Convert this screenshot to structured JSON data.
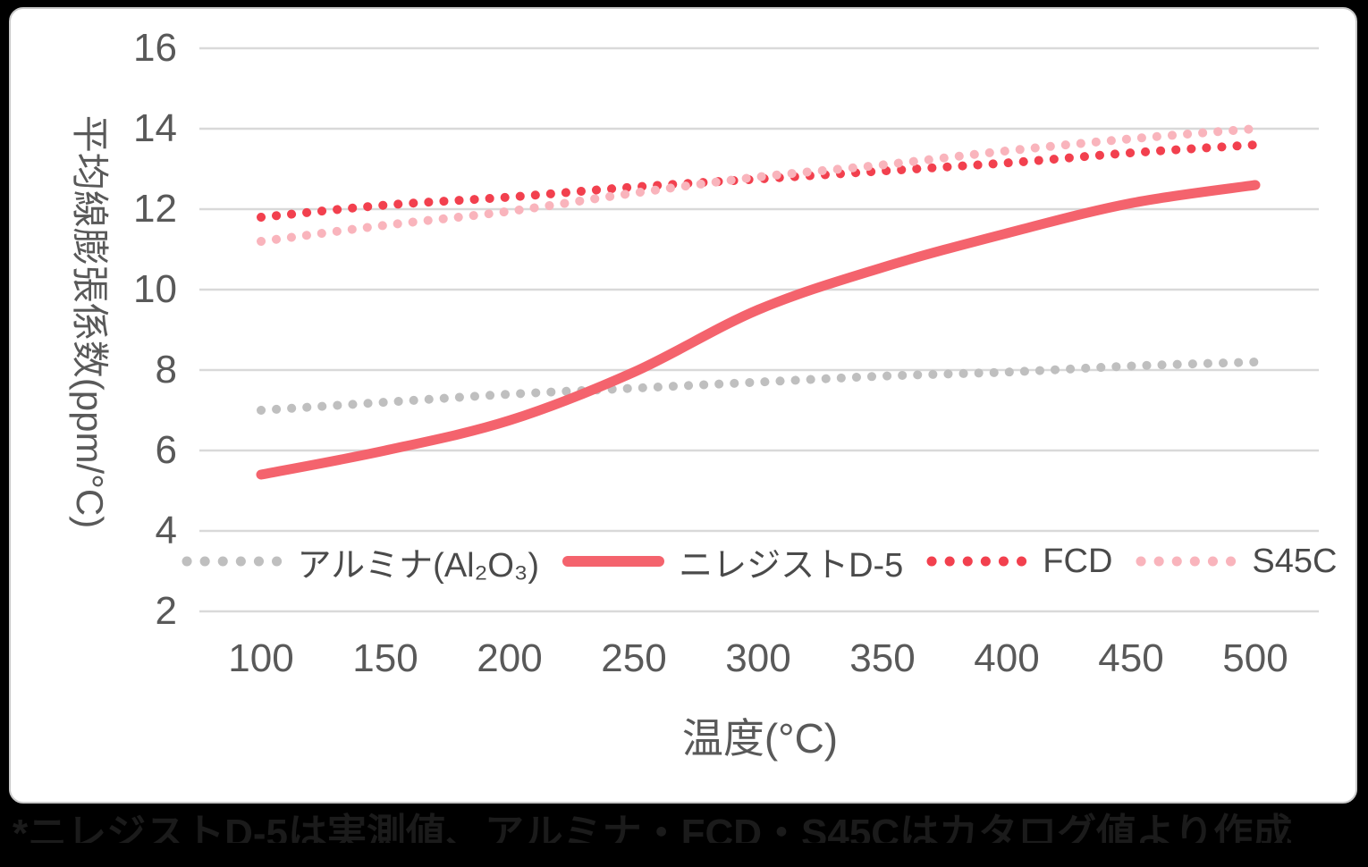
{
  "chart_data": {
    "type": "line",
    "title": "",
    "xlabel": "温度(°C)",
    "ylabel": "平均線膨張係数(ppm/°C)",
    "x": [
      100,
      150,
      200,
      250,
      300,
      350,
      400,
      450,
      500
    ],
    "x_ticks": [
      "100",
      "150",
      "200",
      "250",
      "300",
      "350",
      "400",
      "450",
      "500"
    ],
    "y_ticks": [
      "16",
      "14",
      "12",
      "10",
      "8",
      "6",
      "4",
      "2"
    ],
    "ylim": [
      2,
      16
    ],
    "xlim": [
      75,
      525
    ],
    "grid": true,
    "legend_position": "inside-bottom",
    "series": [
      {
        "id": "alumina",
        "name": "アルミナ(Al₂O₃)",
        "style": "dotted",
        "color": "#BFBFBF",
        "values": [
          7.0,
          7.2,
          7.4,
          7.55,
          7.7,
          7.85,
          7.95,
          8.1,
          8.2
        ]
      },
      {
        "id": "niresist-d5",
        "name": "ニレジストD-5",
        "style": "solid",
        "color": "#F4636D",
        "values": [
          5.4,
          6.0,
          6.75,
          7.95,
          9.5,
          10.55,
          11.4,
          12.15,
          12.6
        ]
      },
      {
        "id": "fcd",
        "name": "FCD",
        "style": "dotted",
        "color": "#F2404E",
        "values": [
          11.8,
          12.1,
          12.3,
          12.55,
          12.75,
          12.95,
          13.15,
          13.4,
          13.6
        ]
      },
      {
        "id": "s45c",
        "name": "S45C",
        "style": "dotted",
        "color": "#F9B4BC",
        "values": [
          11.2,
          11.6,
          11.95,
          12.4,
          12.8,
          13.1,
          13.45,
          13.75,
          14.0
        ]
      }
    ],
    "colors": {
      "gridline": "#D9D9D9",
      "tick_text": "#595959",
      "page_background": "#000000",
      "card_background": "#FFFFFF"
    }
  },
  "caption": "*ニレジストD-5は実測値、アルミナ・FCD・S45Cはカタログ値より作成"
}
